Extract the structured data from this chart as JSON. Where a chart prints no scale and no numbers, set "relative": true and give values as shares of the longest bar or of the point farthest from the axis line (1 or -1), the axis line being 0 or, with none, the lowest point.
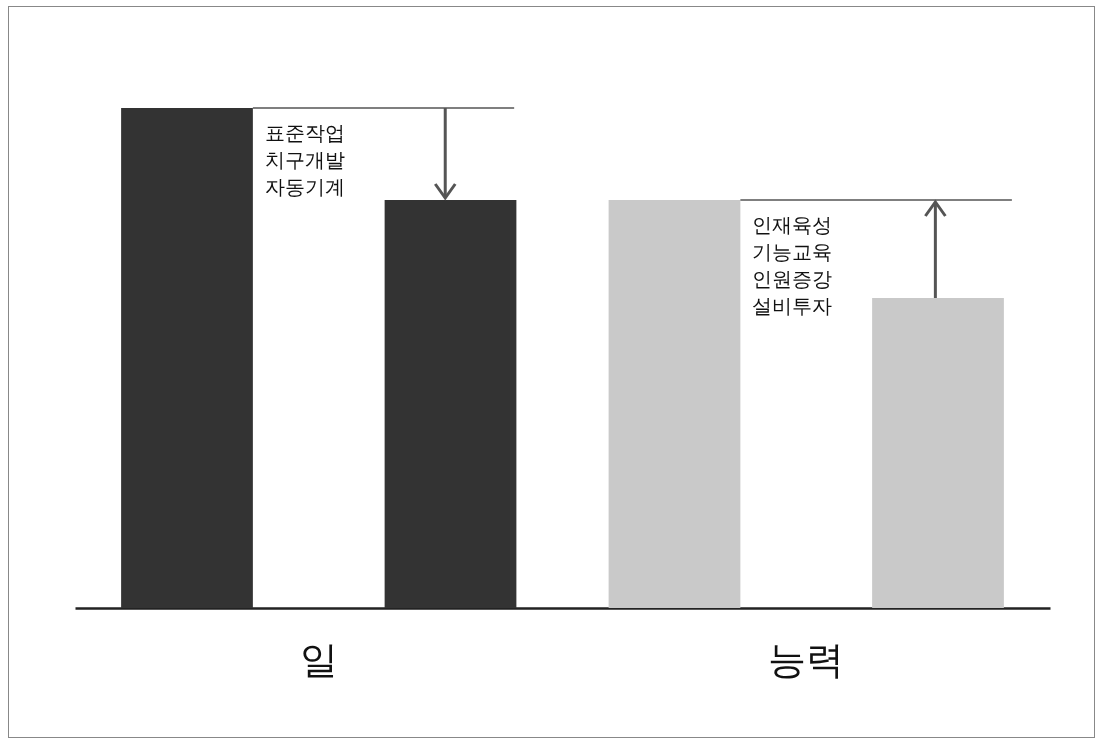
{
  "chart_data": {
    "type": "bar",
    "relative": true,
    "categories": [
      "일",
      "능력"
    ],
    "series": [
      {
        "colors": [
          "#333333",
          "#c9c9c9"
        ],
        "values": [
          1,
          0.816
        ]
      },
      {
        "colors": [
          "#333333",
          "#c9c9c9"
        ],
        "values": [
          0.816,
          0.62
        ]
      }
    ],
    "annotations": [
      "표준작업\n치구개발\n자동기계",
      "인재육성\n기능교육\n인원증강\n설비투자"
    ],
    "grid": false
  }
}
